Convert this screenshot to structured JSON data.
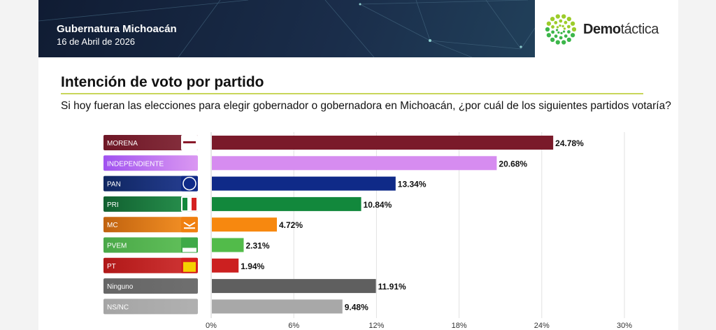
{
  "header": {
    "title": "Gubernatura Michoacán",
    "date": "16 de Abril de 2026",
    "logo": {
      "bold": "Demo",
      "light": "táctica"
    }
  },
  "section": {
    "title": "Intención de voto por partido",
    "question": "Si hoy fueran las elecciones para elegir gobernador o gobernadora en Michoacán, ¿por cuál de los siguientes partidos votaría?"
  },
  "chart_data": {
    "type": "bar",
    "orientation": "horizontal",
    "categories": [
      "MORENA",
      "INDEPENDIENTE",
      "PAN",
      "PRI",
      "MC",
      "PVEM",
      "PT",
      "Ninguno",
      "NS/NC"
    ],
    "values": [
      24.78,
      20.68,
      13.34,
      10.84,
      4.72,
      2.31,
      1.94,
      11.91,
      9.48
    ],
    "data_labels": [
      "24.78%",
      "20.68%",
      "13.34%",
      "10.84%",
      "4.72%",
      "2.31%",
      "1.94%",
      "11.91%",
      "9.48%"
    ],
    "colors": [
      "#7a1a2a",
      "#d68cf0",
      "#0f2a88",
      "#12883c",
      "#f7880f",
      "#52bb4a",
      "#cc2020",
      "#5f5f5f",
      "#a8a8a8"
    ],
    "label_colors": [
      "#6e1726",
      "#a052f0",
      "#0f2660",
      "#116030",
      "#c0620f",
      "#4aa848",
      "#b01818",
      "#666666",
      "#a5a5a5"
    ],
    "party_icons": [
      "morena-logo",
      "",
      "pan-logo",
      "pri-logo",
      "mc-logo",
      "verde-logo",
      "pt-logo",
      "",
      ""
    ],
    "xlim": [
      0,
      30
    ],
    "xticks": [
      "0%",
      "6%",
      "12%",
      "18%",
      "24%",
      "30%"
    ],
    "xtick_values": [
      0,
      6,
      12,
      18,
      24,
      30
    ],
    "grid": true
  }
}
